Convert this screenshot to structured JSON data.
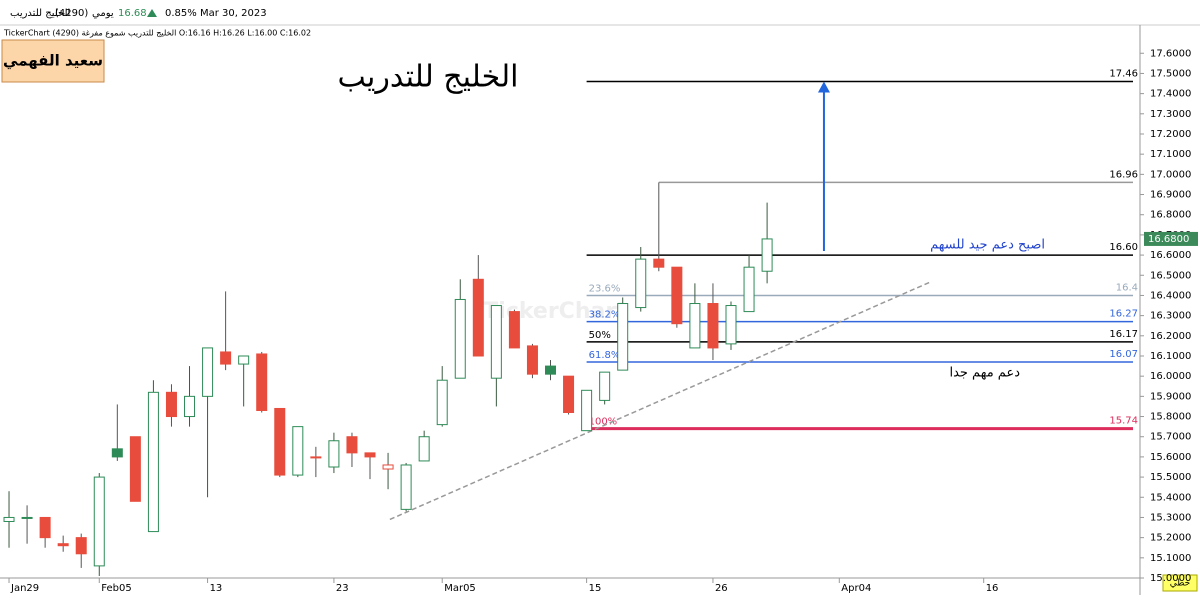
{
  "header": {
    "name": "الخليج للتدريب",
    "code": "(4290)",
    "period": "يومي",
    "price": "16.68",
    "change": "0.85%",
    "date": "Mar 30, 2023"
  },
  "subheader": "TickerChart الخليج للتدريب شموع مفرغة (4290) O:16.16 H:16.26 L:16.00 C:16.02",
  "author": "سعيد الفهمي",
  "chart_data": {
    "type": "candlestick",
    "title": "الخليج للتدريب",
    "x": [
      0,
      1,
      2,
      3,
      4,
      5,
      6,
      7,
      8,
      9,
      10,
      11,
      12,
      13,
      14,
      15,
      16,
      17,
      18,
      19,
      20,
      21,
      22,
      23,
      24,
      25,
      26,
      27,
      28,
      29,
      30,
      31,
      32,
      33,
      34,
      35,
      36,
      37,
      38,
      39,
      40,
      41,
      42
    ],
    "open": [
      15.28,
      15.3,
      15.3,
      15.17,
      15.2,
      15.06,
      15.64,
      15.7,
      15.23,
      15.92,
      15.8,
      15.9,
      16.12,
      16.06,
      16.11,
      15.84,
      15.51,
      15.6,
      15.55,
      15.7,
      15.62,
      15.54,
      15.34,
      15.58,
      15.76,
      15.99,
      16.48,
      15.99,
      16.32,
      16.15,
      16.05,
      16.0,
      15.73,
      15.88,
      16.03,
      16.34,
      16.58,
      16.54,
      16.14,
      16.36,
      16.16,
      16.32,
      16.52
    ],
    "high": [
      15.43,
      15.36,
      15.3,
      15.21,
      15.22,
      15.52,
      15.86,
      15.7,
      15.98,
      15.96,
      16.05,
      16.14,
      16.42,
      16.1,
      16.12,
      15.84,
      15.75,
      15.65,
      15.72,
      15.72,
      15.62,
      15.62,
      15.57,
      15.73,
      16.05,
      16.48,
      16.6,
      16.35,
      16.33,
      16.16,
      16.08,
      16.0,
      15.93,
      16.02,
      16.39,
      16.64,
      16.96,
      16.54,
      16.46,
      16.46,
      16.37,
      16.6,
      16.86
    ],
    "low": [
      15.15,
      15.17,
      15.15,
      15.13,
      15.05,
      15.01,
      15.58,
      15.38,
      15.23,
      15.75,
      15.75,
      15.4,
      16.03,
      15.85,
      15.82,
      15.5,
      15.5,
      15.5,
      15.52,
      15.55,
      15.49,
      15.44,
      15.33,
      15.58,
      15.75,
      15.99,
      16.1,
      15.85,
      16.14,
      15.99,
      15.98,
      15.81,
      15.73,
      15.86,
      16.03,
      16.32,
      16.52,
      16.24,
      16.14,
      16.08,
      16.13,
      16.32,
      16.46
    ],
    "close": [
      15.3,
      15.3,
      15.2,
      15.16,
      15.12,
      15.5,
      15.6,
      15.38,
      15.92,
      15.8,
      15.9,
      16.14,
      16.06,
      16.1,
      15.83,
      15.51,
      15.75,
      15.6,
      15.68,
      15.62,
      15.6,
      15.56,
      15.56,
      15.7,
      15.98,
      16.38,
      16.1,
      16.35,
      16.14,
      16.01,
      16.01,
      15.82,
      15.93,
      16.02,
      16.36,
      16.58,
      16.54,
      16.26,
      16.36,
      16.14,
      16.35,
      16.54,
      16.68
    ],
    "up_color": "#2e8b57",
    "down_color": "#e74c3c",
    "xlim": [
      -0.5,
      62.66
    ],
    "xticks": [
      {
        "value": 0,
        "label": "Jan29"
      },
      {
        "value": 5,
        "label": "Feb05"
      },
      {
        "value": 11,
        "label": "13"
      },
      {
        "value": 18,
        "label": "23"
      },
      {
        "value": 24,
        "label": "Mar05"
      },
      {
        "value": 32,
        "label": "15"
      },
      {
        "value": 39,
        "label": "26"
      },
      {
        "value": 46,
        "label": "Apr04"
      },
      {
        "value": 54,
        "label": "16"
      }
    ],
    "ylim": [
      15.0,
      17.74
    ],
    "yticks": [
      {
        "value": 15.0,
        "label": "15.0000"
      },
      {
        "value": 15.1,
        "label": "15.1000"
      },
      {
        "value": 15.2,
        "label": "15.2000"
      },
      {
        "value": 15.3,
        "label": "15.3000"
      },
      {
        "value": 15.4,
        "label": "15.4000"
      },
      {
        "value": 15.5,
        "label": "15.5000"
      },
      {
        "value": 15.6,
        "label": "15.6000"
      },
      {
        "value": 15.7,
        "label": "15.7000"
      },
      {
        "value": 15.8,
        "label": "15.8000"
      },
      {
        "value": 15.9,
        "label": "15.9000"
      },
      {
        "value": 16.0,
        "label": "16.0000"
      },
      {
        "value": 16.1,
        "label": "16.1000"
      },
      {
        "value": 16.2,
        "label": "16.2000"
      },
      {
        "value": 16.3,
        "label": "16.3000"
      },
      {
        "value": 16.4,
        "label": "16.4000"
      },
      {
        "value": 16.5,
        "label": "16.5000"
      },
      {
        "value": 16.6,
        "label": "16.6000"
      },
      {
        "value": 16.7,
        "label": "16.7000"
      },
      {
        "value": 16.8,
        "label": "16.8000"
      },
      {
        "value": 16.9,
        "label": "16.9000"
      },
      {
        "value": 17.0,
        "label": "17.0000"
      },
      {
        "value": 17.1,
        "label": "17.1000"
      },
      {
        "value": 17.2,
        "label": "17.2000"
      },
      {
        "value": 17.3,
        "label": "17.3000"
      },
      {
        "value": 17.4,
        "label": "17.4000"
      },
      {
        "value": 17.5,
        "label": "17.5000"
      },
      {
        "value": 17.6,
        "label": "17.6000"
      }
    ],
    "last_price": {
      "value": 16.68,
      "label": "16.6800"
    },
    "levels": [
      {
        "value": 17.46,
        "label": "17.46",
        "from": 32,
        "color": "#000000"
      },
      {
        "value": 16.96,
        "label": "16.96",
        "from": 36,
        "color": "#999999"
      },
      {
        "value": 16.6,
        "label": "16.60",
        "from": 32,
        "color": "#000000"
      },
      {
        "value": 16.4,
        "label": "16.4",
        "fib": "23.6%",
        "from": 32,
        "color": "#9ab"
      },
      {
        "value": 16.27,
        "label": "16.27",
        "fib": "38.2%",
        "from": 32,
        "color": "#3366dd"
      },
      {
        "value": 16.17,
        "label": "16.17",
        "fib": "50%",
        "from": 32,
        "color": "#000000"
      },
      {
        "value": 16.07,
        "label": "16.07",
        "fib": "61.8%",
        "from": 32,
        "color": "#3366dd"
      },
      {
        "value": 15.74,
        "label": "15.74",
        "fib": "100%",
        "from": 32,
        "color": "#dc2d5c"
      }
    ],
    "trend_line": {
      "x": [
        21.1,
        51.13
      ],
      "y": [
        15.29,
        16.47
      ]
    },
    "arrow": {
      "x": 45.15,
      "from": 16.62,
      "to": 17.46
    },
    "annotations": [
      "اصبح دعم جيد للسهم",
      "دعم مهم جدا"
    ],
    "line_mode": "خطي"
  }
}
